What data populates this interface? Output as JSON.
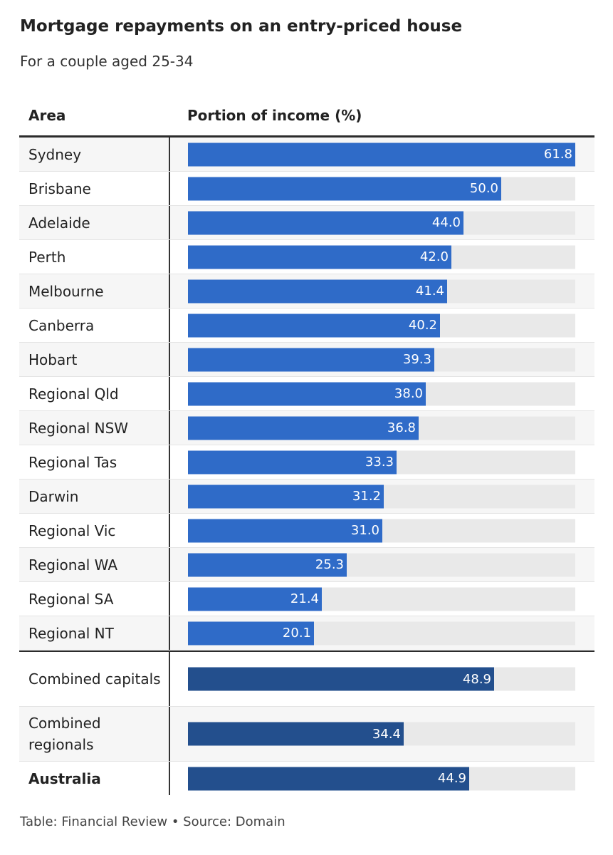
{
  "title": "Mortgage repayments on an entry-priced house",
  "subtitle": "For a couple aged 25-34",
  "columns": {
    "area": "Area",
    "value": "Portion of income (%)"
  },
  "colors": {
    "bar": "#2f6bc8",
    "bar_aggregate": "#234f8d",
    "track": "#e9e9e9"
  },
  "footer": "Table: Financial Review • Source: Domain",
  "chart_data": {
    "type": "bar",
    "orientation": "horizontal",
    "title": "Mortgage repayments on an entry-priced house",
    "subtitle": "For a couple aged 25-34",
    "xlabel": "Portion of income (%)",
    "ylabel": "Area",
    "xlim": [
      0,
      61.8
    ],
    "grid": false,
    "categories": [
      "Sydney",
      "Brisbane",
      "Adelaide",
      "Perth",
      "Melbourne",
      "Canberra",
      "Hobart",
      "Regional Qld",
      "Regional NSW",
      "Regional Tas",
      "Darwin",
      "Regional Vic",
      "Regional WA",
      "Regional SA",
      "Regional NT",
      "Combined capitals",
      "Combined regionals",
      "Australia"
    ],
    "values": [
      61.8,
      50.0,
      44.0,
      42.0,
      41.4,
      40.2,
      39.3,
      38.0,
      36.8,
      33.3,
      31.2,
      31.0,
      25.3,
      21.4,
      20.1,
      48.9,
      34.4,
      44.9
    ],
    "value_labels": [
      "61.8",
      "50.0",
      "44.0",
      "42.0",
      "41.4",
      "40.2",
      "39.3",
      "38.0",
      "36.8",
      "33.3",
      "31.2",
      "31.0",
      "25.3",
      "21.4",
      "20.1",
      "48.9",
      "34.4",
      "44.9"
    ],
    "aggregate_rows": [
      "Combined capitals",
      "Combined regionals",
      "Australia"
    ]
  }
}
